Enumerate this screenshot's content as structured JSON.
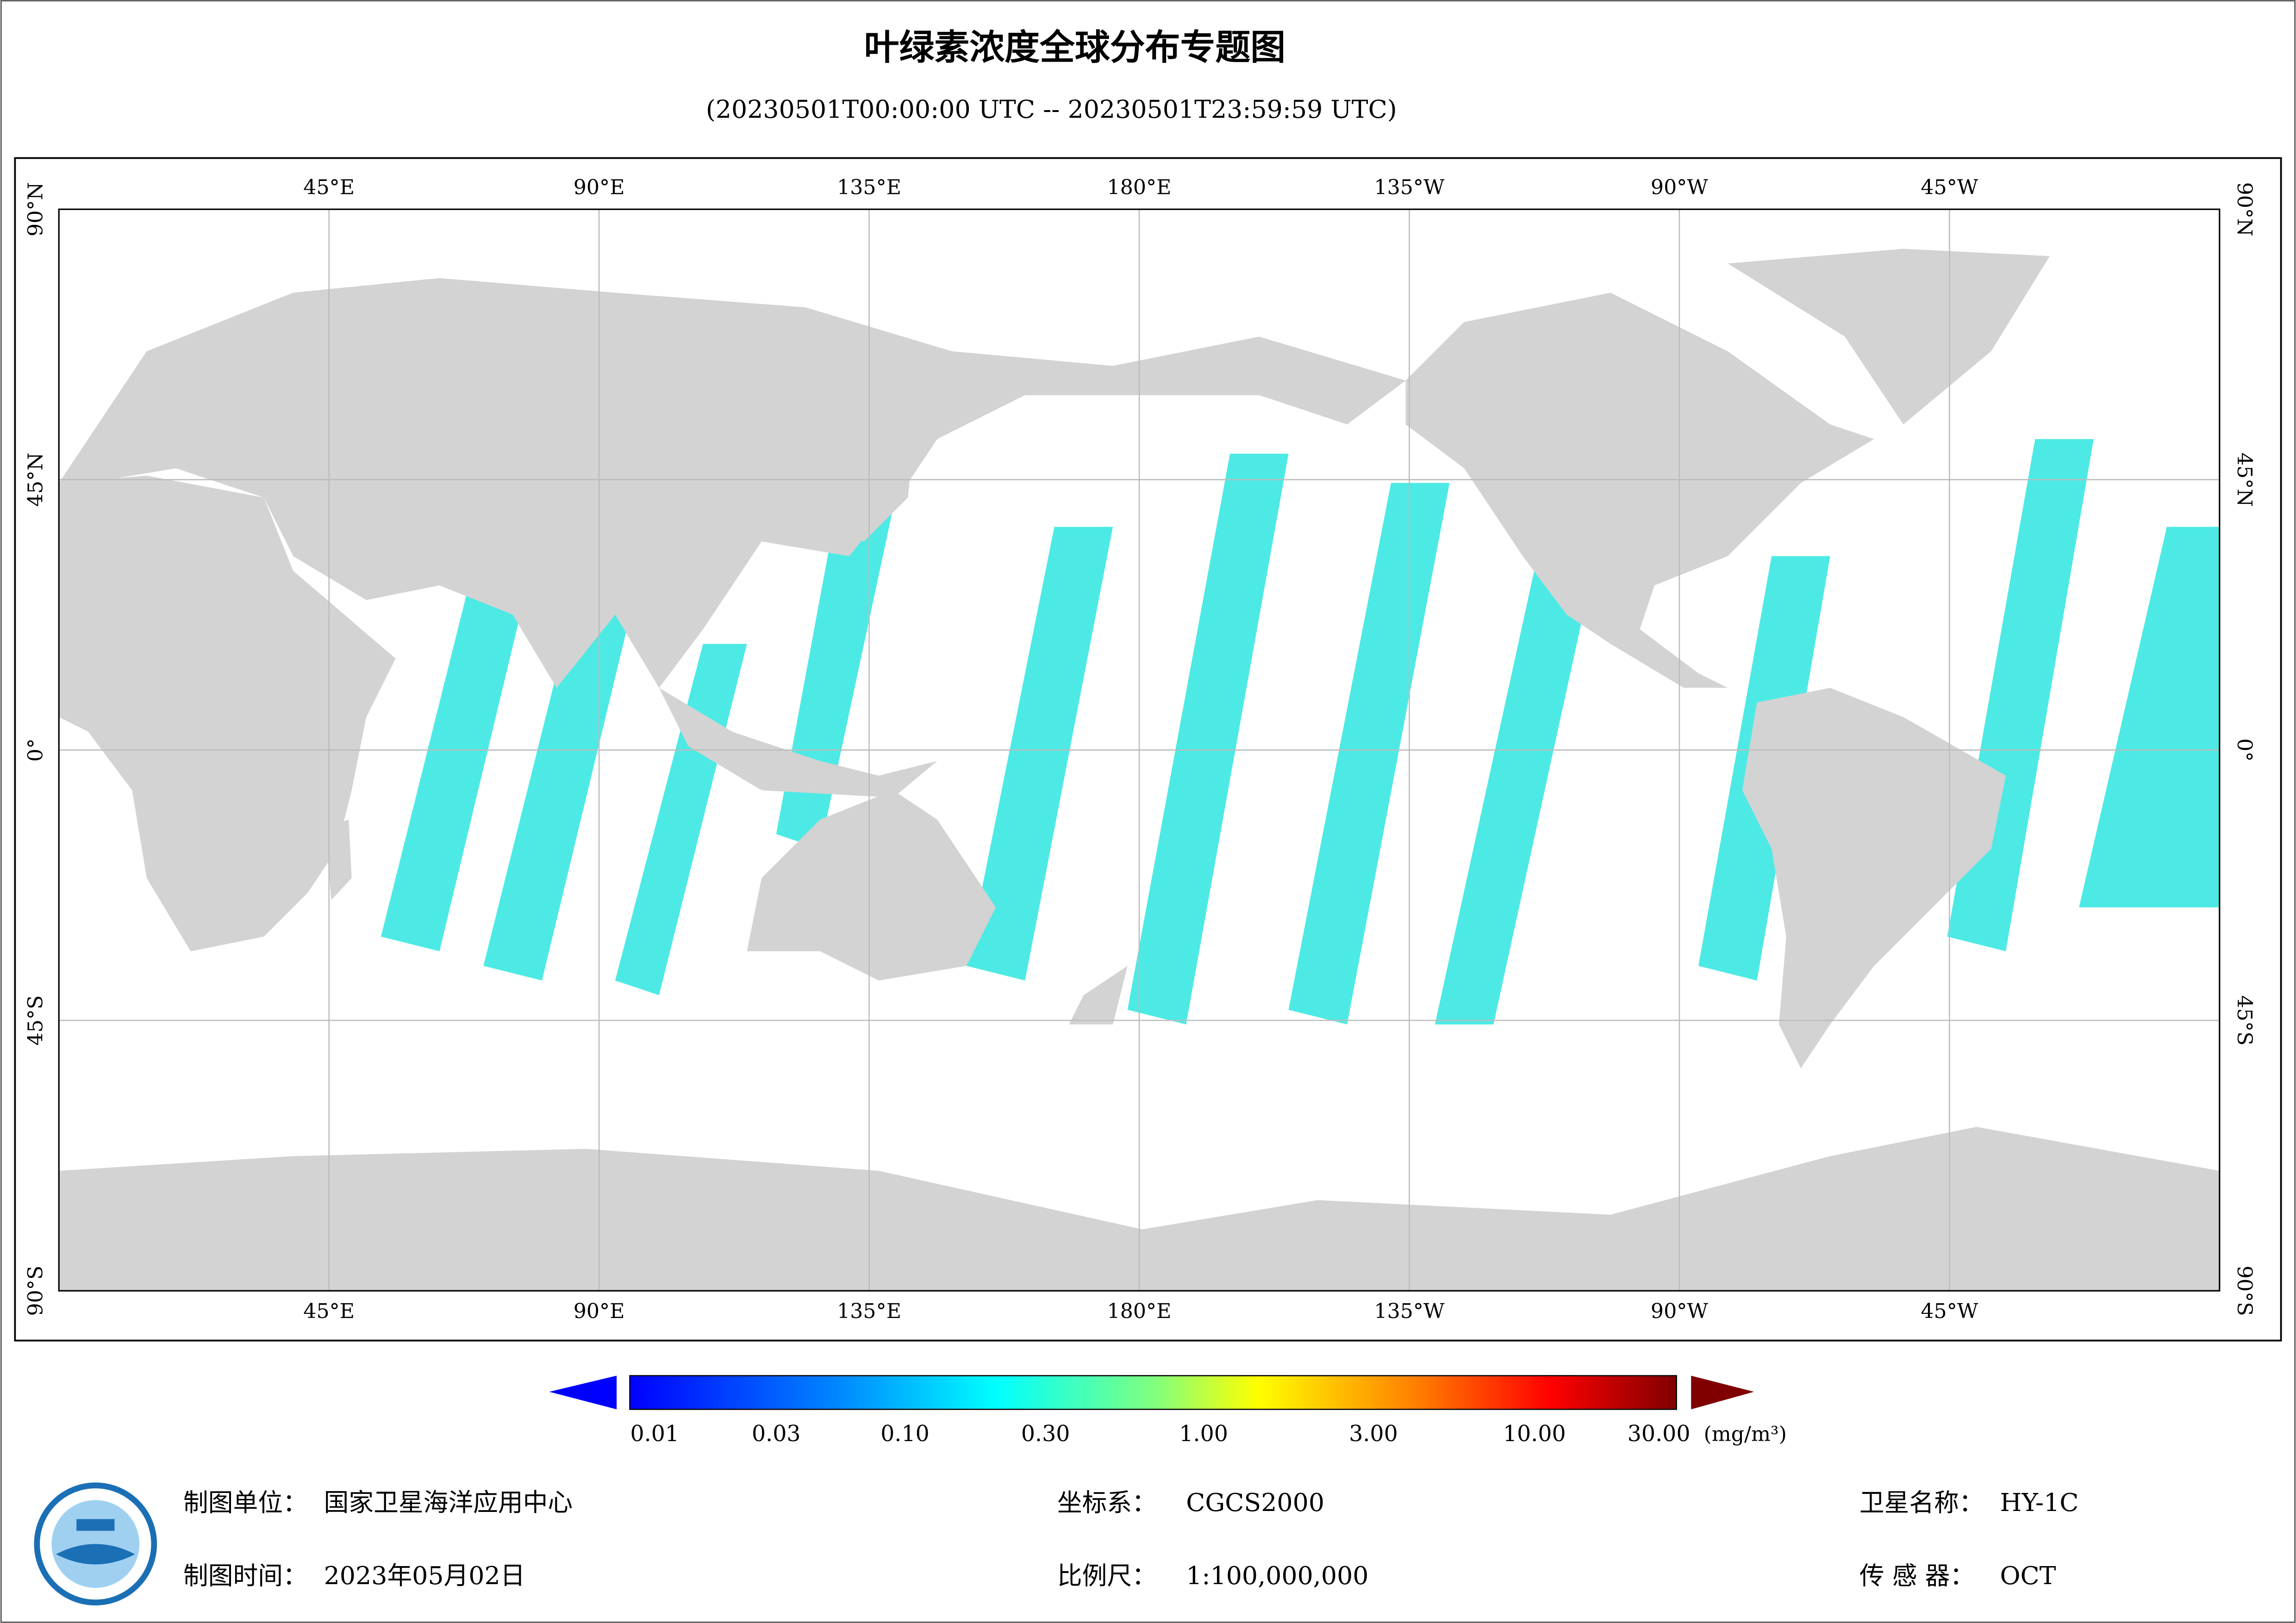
{
  "header": {
    "title": "叶绿素浓度全球分布专题图",
    "subtitle": "(20230501T00:00:00 UTC -- 20230501T23:59:59 UTC)"
  },
  "map": {
    "lon_labels": [
      "45°E",
      "90°E",
      "135°E",
      "180°E",
      "135°W",
      "90°W",
      "45°W"
    ],
    "lat_labels": [
      "90°N",
      "45°N",
      "0°",
      "45°S",
      "90°S"
    ]
  },
  "colorbar": {
    "ticks": [
      "0.01",
      "0.03",
      "0.10",
      "0.30",
      "1.00",
      "3.00",
      "10.00",
      "30.00"
    ],
    "unit": "(mg/m³)"
  },
  "footer": {
    "agency": {
      "label": "制图单位：",
      "value": "国家卫星海洋应用中心"
    },
    "date": {
      "label": "制图时间：",
      "value": "2023年05月02日"
    },
    "crs": {
      "label": "坐标系：",
      "value": "CGCS2000"
    },
    "scale": {
      "label": "比例尺：",
      "value": "1:100,000,000"
    },
    "satellite": {
      "label": "卫星名称：",
      "value": "HY-1C"
    },
    "sensor": {
      "label": "传 感 器：",
      "value": "OCT"
    }
  }
}
